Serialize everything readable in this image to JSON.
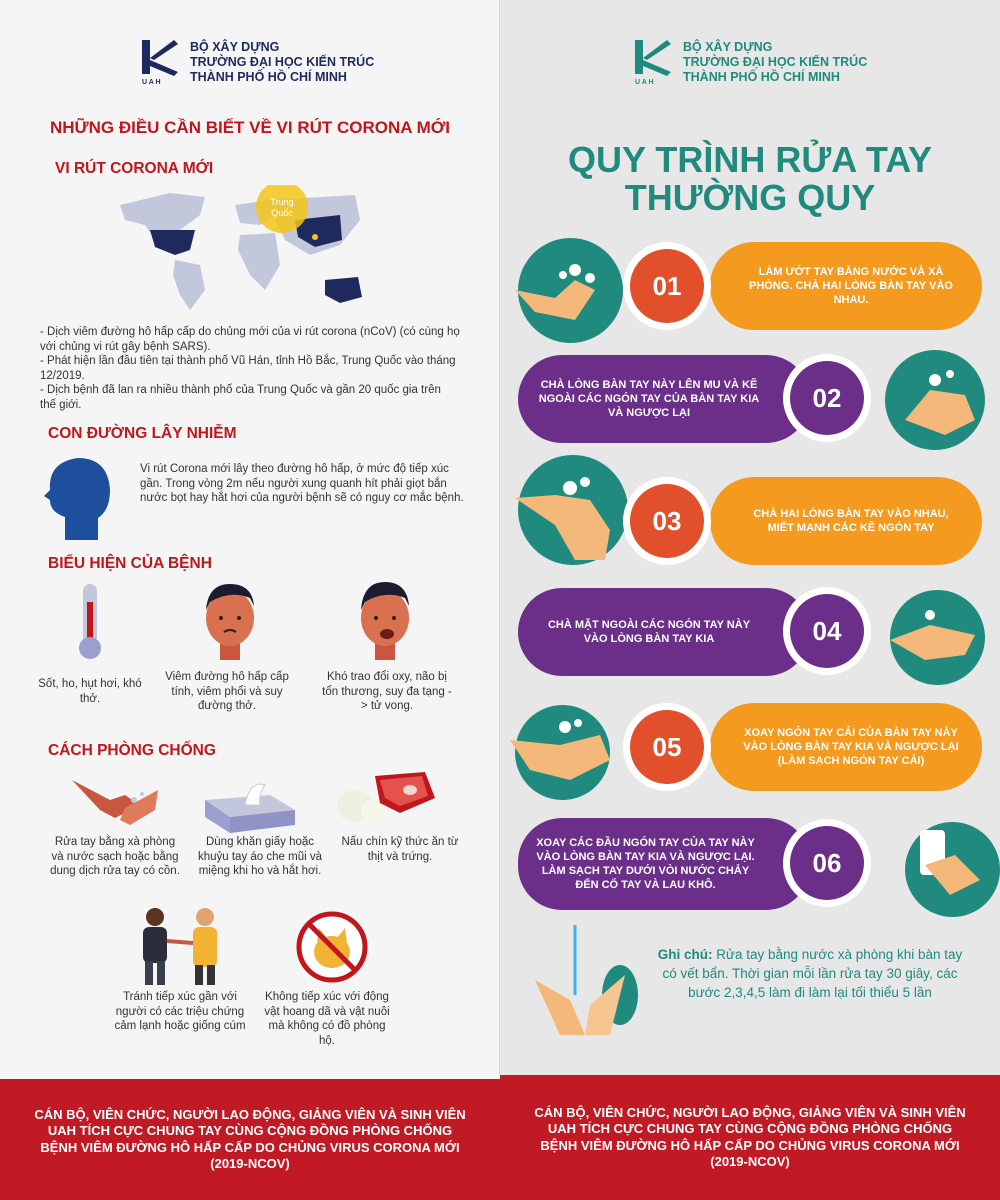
{
  "logo": {
    "line1": "BỘ XÂY DỰNG",
    "line2": "TRƯỜNG ĐẠI HỌC KIẾN TRÚC",
    "line3": "THÀNH PHỐ HỒ CHÍ MINH",
    "abbr": "U A H"
  },
  "left": {
    "title": "NHỮNG ĐIỀU CẦN BIẾT VỀ VI RÚT CORONA MỚI",
    "virus": {
      "heading": "VI RÚT CORONA MỚI",
      "map_label": "Trung Quốc",
      "bullets": [
        "- Dịch viêm đường hô hấp cấp do chủng mới của vi rút corona (nCoV) (có cùng họ với chủng vi rút gây bệnh SARS).",
        "- Phát hiện lần đầu tiên tại thành phố Vũ Hán, tỉnh Hồ Bắc, Trung Quốc vào tháng 12/2019.",
        "- Dịch bệnh đã lan ra nhiều thành phố của Trung Quốc và gần 20 quốc gia trên thế giới."
      ]
    },
    "transmission": {
      "heading": "CON ĐƯỜNG LÂY NHIỄM",
      "text": "Vi rút Corona mới lây theo đường hô hấp, ở mức độ tiếp xúc gần. Trong vòng 2m nếu người xung quanh hít phải giọt bắn nước bọt hay hắt hơi của người bệnh sẽ có nguy cơ mắc bệnh."
    },
    "symptoms": {
      "heading": "BIỂU HIỆN CỦA BỆNH",
      "items": [
        "Sốt, ho, hụt hơi, khó thở.",
        "Viêm đường hô hấp cấp tính, viêm phổi và suy đường thở.",
        "Khó trao đổi oxy, não bị tổn thương, suy đa tạng -> tử vong."
      ]
    },
    "prevention": {
      "heading": "CÁCH PHÒNG CHỐNG",
      "items": [
        "Rửa tay bằng xà phòng và nước sạch hoặc bằng dung dịch rửa tay có cồn.",
        "Dùng khăn giấy hoặc khuỷu tay áo che mũi và miệng khi ho và hắt hơi.",
        "Nấu chín kỹ thức ăn từ thịt và trứng.",
        "Tránh tiếp xúc gần với người có các triệu chứng cảm lạnh hoặc giống cúm",
        "Không tiếp xúc với động vật hoang dã và vật nuôi mà không có đồ phòng hộ."
      ]
    },
    "footer": "CÁN BỘ, VIÊN CHỨC, NGƯỜI LAO ĐỘNG, GIẢNG VIÊN VÀ SINH VIÊN UAH TÍCH CỰC CHUNG TAY CÙNG CỘNG ĐỒNG PHÒNG CHỐNG BỆNH VIÊM ĐƯỜNG HÔ HẤP CẤP DO CHỦNG VIRUS CORONA MỚI (2019-NCOV)"
  },
  "right": {
    "title1": "QUY TRÌNH RỬA TAY",
    "title2": "THƯỜNG QUY",
    "steps": [
      {
        "num": "01",
        "text": "LÀM ƯỚT TAY BẰNG NƯỚC VÀ XÀ PHÒNG. CHÀ HAI LÒNG BÀN TAY VÀO NHAU."
      },
      {
        "num": "02",
        "text": "CHÀ LÒNG BÀN TAY NÀY LÊN MU VÀ KẼ NGOÀI CÁC NGÓN TAY CỦA BÀN TAY KIA VÀ NGƯỢC LẠI"
      },
      {
        "num": "03",
        "text": "CHÀ HAI LÒNG BÀN TAY VÀO NHAU, MIẾT MẠNH CÁC KẼ NGÓN TAY"
      },
      {
        "num": "04",
        "text": "CHÀ MẶT NGOÀI CÁC NGÓN TAY NÀY VÀO LÒNG BÀN TAY KIA"
      },
      {
        "num": "05",
        "text": "XOAY NGÓN TAY CÁI CỦA BÀN TAY NÀY VÀO LÒNG BÀN TAY KIA VÀ NGƯỢC LẠI (LÀM SẠCH NGÓN TAY CÁI)"
      },
      {
        "num": "06",
        "text": "XOAY CÁC ĐẦU NGÓN TAY CỦA TAY NÀY VÀO LÒNG BÀN TAY KIA VÀ NGƯỢC LẠI. LÀM SẠCH TAY DƯỚI VÒI NƯỚC CHẢY ĐẾN CỔ TAY VÀ LAU KHÔ."
      }
    ],
    "note_label": "Ghi chú:",
    "note_text": " Rửa tay bằng nước xà phòng khi bàn tay có vết bẩn. Thời gian mỗi lần rửa tay 30 giây, các bước 2,3,4,5 làm đi làm lại tối thiểu  5 lần",
    "footer": "CÁN BỘ, VIÊN CHỨC, NGƯỜI LAO ĐỘNG, GIẢNG VIÊN VÀ SINH VIÊN UAH TÍCH CỰC CHUNG TAY CÙNG CỘNG ĐỒNG PHÒNG CHỐNG BỆNH VIÊM ĐƯỜNG HÔ HẤP CẤP DO CHỦNG VIRUS CORONA MỚI (2019-NCOV)"
  },
  "colors": {
    "red": "#c0161c",
    "teal": "#1f8a7d",
    "orange": "#f39a1f",
    "purple": "#6b2f8a",
    "navy": "#1e2a5e"
  }
}
